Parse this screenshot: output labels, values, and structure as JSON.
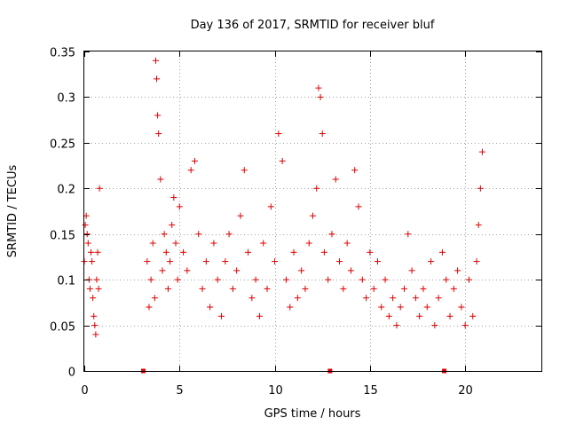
{
  "chart_data": {
    "type": "scatter",
    "title": "Day 136 of 2017, SRMTID for receiver bluf",
    "xlabel": "GPS time / hours",
    "ylabel": "SRMTID / TECUs",
    "xlim": [
      0,
      24
    ],
    "ylim": [
      0,
      0.35
    ],
    "xticks": [
      0,
      5,
      10,
      15,
      20
    ],
    "xtick_labels": [
      "0",
      "5",
      "10",
      "15",
      "20"
    ],
    "yticks": [
      0,
      0.05,
      0.1,
      0.15,
      0.2,
      0.25,
      0.3,
      0.35
    ],
    "ytick_labels": [
      "0",
      "0.05",
      "0.1",
      "0.15",
      "0.2",
      "0.25",
      "0.3",
      "0.35"
    ],
    "grid": true,
    "marker": "plus",
    "color": "#e00000",
    "gap_markers": {
      "x": [
        3.1,
        12.9,
        18.9
      ],
      "y": [
        0,
        0,
        0
      ]
    },
    "series": [
      {
        "x": [
          0.0,
          0.05,
          0.1,
          0.15,
          0.2,
          0.25,
          0.3,
          0.35,
          0.4,
          0.45,
          0.5,
          0.55,
          0.6,
          0.65,
          0.7,
          0.75,
          0.8,
          3.3,
          3.4,
          3.5,
          3.6,
          3.7,
          3.75,
          3.8,
          3.85,
          3.9,
          4.0,
          4.1,
          4.2,
          4.3,
          4.4,
          4.5,
          4.6,
          4.7,
          4.8,
          4.9,
          5.0,
          5.2,
          5.4,
          5.6,
          5.8,
          6.0,
          6.2,
          6.4,
          6.6,
          6.8,
          7.0,
          7.2,
          7.4,
          7.6,
          7.8,
          8.0,
          8.2,
          8.4,
          8.6,
          8.8,
          9.0,
          9.2,
          9.4,
          9.6,
          9.8,
          10.0,
          10.2,
          10.4,
          10.6,
          10.8,
          11.0,
          11.2,
          11.4,
          11.6,
          11.8,
          12.0,
          12.2,
          12.3,
          12.4,
          12.5,
          12.6,
          12.8,
          13.0,
          13.2,
          13.4,
          13.6,
          13.8,
          14.0,
          14.2,
          14.4,
          14.6,
          14.8,
          15.0,
          15.2,
          15.4,
          15.6,
          15.8,
          16.0,
          16.2,
          16.4,
          16.6,
          16.8,
          17.0,
          17.2,
          17.4,
          17.6,
          17.8,
          18.0,
          18.2,
          18.4,
          18.6,
          18.8,
          19.0,
          19.2,
          19.4,
          19.6,
          19.8,
          20.0,
          20.2,
          20.4,
          20.6,
          20.7,
          20.8,
          20.9
        ],
        "y": [
          0.12,
          0.16,
          0.17,
          0.15,
          0.14,
          0.1,
          0.09,
          0.13,
          0.12,
          0.08,
          0.06,
          0.05,
          0.04,
          0.1,
          0.13,
          0.09,
          0.2,
          0.12,
          0.07,
          0.1,
          0.14,
          0.08,
          0.34,
          0.32,
          0.28,
          0.26,
          0.21,
          0.11,
          0.15,
          0.13,
          0.09,
          0.12,
          0.16,
          0.19,
          0.14,
          0.1,
          0.18,
          0.13,
          0.11,
          0.22,
          0.23,
          0.15,
          0.09,
          0.12,
          0.07,
          0.14,
          0.1,
          0.06,
          0.12,
          0.15,
          0.09,
          0.11,
          0.17,
          0.22,
          0.13,
          0.08,
          0.1,
          0.06,
          0.14,
          0.09,
          0.18,
          0.12,
          0.26,
          0.23,
          0.1,
          0.07,
          0.13,
          0.08,
          0.11,
          0.09,
          0.14,
          0.17,
          0.2,
          0.31,
          0.3,
          0.26,
          0.13,
          0.1,
          0.15,
          0.21,
          0.12,
          0.09,
          0.14,
          0.11,
          0.22,
          0.18,
          0.1,
          0.08,
          0.13,
          0.09,
          0.12,
          0.07,
          0.1,
          0.06,
          0.08,
          0.05,
          0.07,
          0.09,
          0.15,
          0.11,
          0.08,
          0.06,
          0.09,
          0.07,
          0.12,
          0.05,
          0.08,
          0.13,
          0.1,
          0.06,
          0.09,
          0.11,
          0.07,
          0.05,
          0.1,
          0.06,
          0.12,
          0.16,
          0.2,
          0.24
        ]
      }
    ]
  }
}
